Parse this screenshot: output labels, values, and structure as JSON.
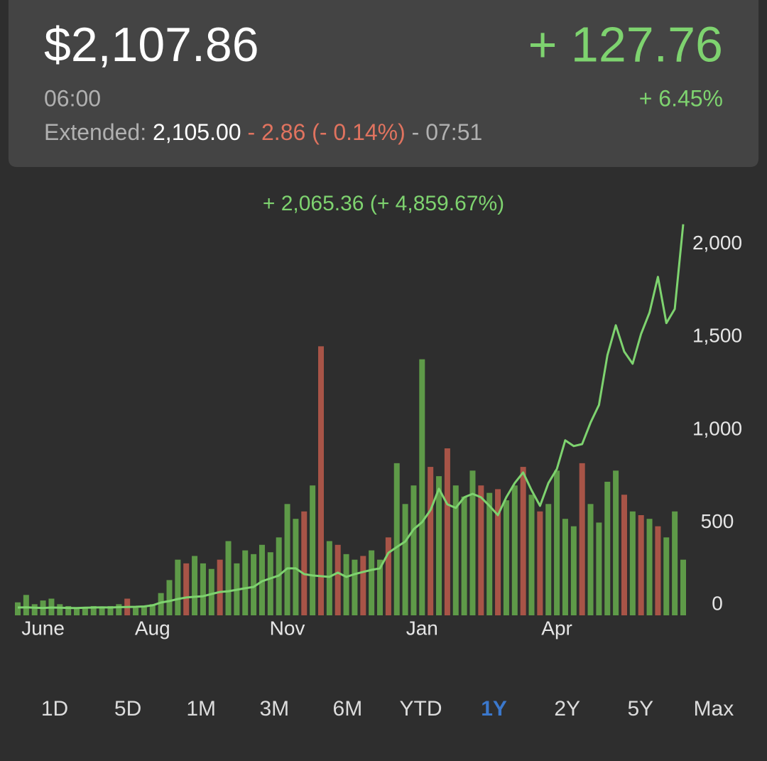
{
  "header": {
    "price": "$2,107.86",
    "time": "06:00",
    "change": "+ 127.76",
    "change_percent": "+ 6.45%",
    "extended_label": "Extended:",
    "extended_price": "2,105.00",
    "extended_change": "- 2.86 (- 0.14%)",
    "extended_time": "- 07:51"
  },
  "chart_data": {
    "type": "line",
    "annotation": "+ 2,065.36 (+ 4,859.67%)",
    "categories": [
      null,
      null,
      null,
      "June",
      null,
      null,
      null,
      null,
      null,
      null,
      null,
      null,
      null,
      null,
      null,
      null,
      "Aug",
      null,
      null,
      null,
      null,
      null,
      null,
      null,
      null,
      null,
      null,
      null,
      null,
      null,
      null,
      null,
      "Nov",
      null,
      null,
      null,
      null,
      null,
      null,
      null,
      null,
      null,
      null,
      null,
      null,
      null,
      null,
      null,
      "Jan",
      null,
      null,
      null,
      null,
      null,
      null,
      null,
      null,
      null,
      null,
      null,
      null,
      null,
      null,
      null,
      "Apr",
      null,
      null,
      null,
      null,
      null,
      null,
      null,
      null,
      null,
      null,
      null,
      null,
      null,
      null,
      null
    ],
    "series": [
      {
        "type": "line",
        "color": "#7ed36f",
        "values": [
          42,
          43,
          41,
          40,
          42,
          41,
          40,
          39,
          41,
          42,
          43,
          42,
          44,
          45,
          46,
          48,
          54,
          69,
          77,
          88,
          96,
          100,
          103,
          115,
          126,
          130,
          138,
          146,
          153,
          184,
          199,
          215,
          253,
          253,
          222,
          215,
          211,
          207,
          230,
          207,
          222,
          234,
          245,
          253,
          337,
          368,
          398,
          464,
          502,
          567,
          682,
          598,
          579,
          636,
          655,
          636,
          590,
          540,
          636,
          713,
          770,
          674,
          590,
          713,
          789,
          943,
          912,
          923,
          1038,
          1134,
          1402,
          1563,
          1421,
          1356,
          1517,
          1632,
          1824,
          1575,
          1651,
          2107.86
        ]
      },
      {
        "type": "bar",
        "color": "#5e9a48",
        "values": [
          70,
          110,
          60,
          80,
          90,
          60,
          50,
          40,
          45,
          50,
          40,
          50,
          60,
          null,
          40,
          50,
          60,
          120,
          190,
          300,
          null,
          320,
          280,
          250,
          null,
          400,
          280,
          350,
          330,
          380,
          340,
          420,
          600,
          520,
          null,
          700,
          null,
          400,
          null,
          330,
          300,
          null,
          350,
          300,
          null,
          820,
          600,
          700,
          1380,
          null,
          750,
          null,
          700,
          640,
          780,
          null,
          660,
          null,
          620,
          700,
          null,
          650,
          null,
          600,
          780,
          520,
          480,
          null,
          600,
          500,
          720,
          780,
          null,
          560,
          null,
          520,
          null,
          420,
          560,
          300
        ]
      },
      {
        "type": "bar",
        "color": "#a85447",
        "values": [
          null,
          null,
          null,
          null,
          null,
          null,
          null,
          null,
          null,
          null,
          null,
          null,
          null,
          90,
          null,
          null,
          null,
          null,
          null,
          null,
          280,
          null,
          null,
          null,
          300,
          null,
          null,
          null,
          null,
          null,
          null,
          null,
          null,
          null,
          560,
          null,
          1450,
          null,
          380,
          null,
          null,
          320,
          null,
          null,
          420,
          null,
          null,
          null,
          null,
          800,
          null,
          900,
          null,
          null,
          null,
          700,
          null,
          680,
          null,
          null,
          800,
          null,
          560,
          null,
          null,
          null,
          null,
          820,
          null,
          null,
          null,
          null,
          650,
          null,
          540,
          null,
          480,
          null,
          null,
          null
        ]
      }
    ],
    "ylim": [
      0,
      2110
    ],
    "yticks": [
      0,
      500,
      {
        "value": 1000,
        "label": "1,000"
      },
      {
        "value": 1500,
        "label": "1,500"
      },
      {
        "value": 2000,
        "label": "2,000"
      }
    ]
  },
  "ranges": {
    "items": [
      "1D",
      "5D",
      "1M",
      "3M",
      "6M",
      "YTD",
      "1Y",
      "2Y",
      "5Y",
      "Max"
    ],
    "selected": 6,
    "color": "#dcdcdc",
    "selected_color": "#3b78cc"
  }
}
